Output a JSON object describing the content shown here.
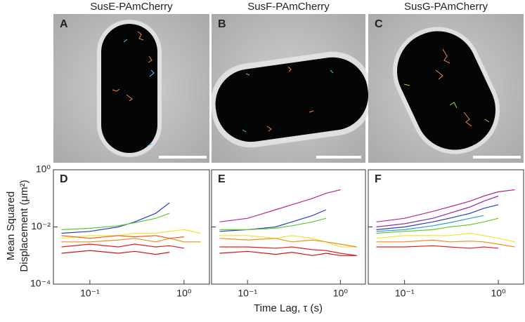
{
  "figure": {
    "ylabel": [
      "Mean Squared",
      "Displacement (μm²)"
    ],
    "xlabel": "Time Lag, τ (s)"
  },
  "images": [
    {
      "title": "SusE-PAmCherry",
      "label": "A"
    },
    {
      "title": "SusF-PAmCherry",
      "label": "B"
    },
    {
      "title": "SusG-PAmCherry",
      "label": "C"
    }
  ],
  "chart_data": [
    {
      "type": "line",
      "label": "D",
      "log_x": true,
      "log_y": true,
      "xlim": [
        0.041,
        1.86
      ],
      "ylim": [
        0.0001,
        1
      ],
      "xticks": [
        {
          "value": 0.1,
          "label": "10⁻¹"
        },
        {
          "value": 1,
          "label": "10⁰"
        }
      ],
      "yticks": [
        {
          "value": 0.0001,
          "label": "10⁻⁴"
        },
        {
          "value": 0.01,
          "label": "10⁻²"
        },
        {
          "value": 1,
          "label": "10⁰"
        }
      ],
      "x": [
        0.05,
        0.1,
        0.2,
        0.3,
        0.5,
        0.7,
        1.0,
        1.5
      ],
      "series": [
        {
          "color": "#2a3cc8",
          "values": [
            0.006,
            0.007,
            0.01,
            0.015,
            0.03,
            0.07,
            null,
            null
          ]
        },
        {
          "color": "#5cc832",
          "values": [
            0.008,
            0.009,
            0.011,
            0.014,
            0.02,
            0.03,
            null,
            null
          ]
        },
        {
          "color": "#f0e628",
          "values": [
            0.004,
            0.005,
            0.005,
            0.006,
            0.006,
            0.007,
            0.008,
            0.006
          ]
        },
        {
          "color": "#f08c1e",
          "values": [
            0.003,
            0.003,
            0.0035,
            0.004,
            0.003,
            0.004,
            0.003,
            0.003
          ]
        },
        {
          "color": "#f05a14",
          "values": [
            0.005,
            0.004,
            0.005,
            0.0045,
            0.005,
            0.004,
            0.0045,
            null
          ]
        },
        {
          "color": "#e61e1e",
          "values": [
            0.002,
            0.0025,
            0.002,
            0.0025,
            0.002,
            0.0022,
            0.0018,
            null
          ]
        },
        {
          "color": "#d21414",
          "values": [
            0.0012,
            0.0015,
            0.0012,
            0.0014,
            0.0011,
            0.0013,
            null,
            null
          ]
        }
      ]
    },
    {
      "type": "line",
      "label": "E",
      "log_x": true,
      "log_y": true,
      "xlim": [
        0.041,
        1.86
      ],
      "ylim": [
        0.0001,
        1
      ],
      "xticks": [
        {
          "value": 0.1,
          "label": "10⁻¹"
        },
        {
          "value": 1,
          "label": "10⁰"
        }
      ],
      "yticks": [
        0.0001,
        0.01,
        1
      ],
      "x": [
        0.05,
        0.1,
        0.2,
        0.3,
        0.5,
        0.7,
        1.0,
        1.5
      ],
      "series": [
        {
          "color": "#b42896",
          "values": [
            0.015,
            0.02,
            0.04,
            0.06,
            0.1,
            0.15,
            0.2,
            null
          ]
        },
        {
          "color": "#2a3cc8",
          "values": [
            0.007,
            0.008,
            0.01,
            0.015,
            0.025,
            0.04,
            null,
            null
          ]
        },
        {
          "color": "#5cc832",
          "values": [
            0.008,
            0.008,
            0.009,
            0.011,
            0.015,
            0.02,
            null,
            null
          ]
        },
        {
          "color": "#f0e628",
          "values": [
            0.005,
            0.005,
            0.004,
            0.005,
            0.004,
            0.003,
            0.002,
            0.002
          ]
        },
        {
          "color": "#f08c1e",
          "values": [
            0.004,
            0.0035,
            0.004,
            0.003,
            0.0035,
            0.003,
            0.0025,
            0.002
          ]
        },
        {
          "color": "#e61e1e",
          "values": [
            0.002,
            0.002,
            0.0018,
            0.002,
            0.0016,
            0.0015,
            0.0012,
            0.001
          ]
        },
        {
          "color": "#d21414",
          "values": [
            0.0012,
            0.0014,
            0.0011,
            0.0013,
            0.001,
            0.0012,
            0.001,
            0.001
          ]
        }
      ]
    },
    {
      "type": "line",
      "label": "F",
      "log_x": true,
      "log_y": true,
      "xlim": [
        0.041,
        1.86
      ],
      "ylim": [
        0.0001,
        1
      ],
      "xticks": [
        {
          "value": 0.1,
          "label": "10⁻¹"
        },
        {
          "value": 1,
          "label": "10⁰"
        }
      ],
      "yticks": [
        0.0001,
        0.01,
        1
      ],
      "x": [
        0.05,
        0.1,
        0.2,
        0.3,
        0.5,
        0.7,
        1.0,
        1.5
      ],
      "series": [
        {
          "color": "#b42896",
          "values": [
            0.015,
            0.02,
            0.035,
            0.05,
            0.08,
            0.12,
            0.17,
            0.2
          ]
        },
        {
          "color": "#9628a0",
          "values": [
            0.01,
            0.013,
            0.02,
            0.03,
            0.05,
            0.08,
            0.12,
            null
          ]
        },
        {
          "color": "#2a3cc8",
          "values": [
            0.008,
            0.01,
            0.015,
            0.02,
            0.03,
            0.045,
            0.06,
            null
          ]
        },
        {
          "color": "#28a0c8",
          "values": [
            0.007,
            0.008,
            0.011,
            0.014,
            0.02,
            0.025,
            null,
            null
          ]
        },
        {
          "color": "#5cc832",
          "values": [
            0.006,
            0.007,
            0.008,
            0.01,
            0.012,
            0.015,
            0.02,
            null
          ]
        },
        {
          "color": "#f0e628",
          "values": [
            0.004,
            0.005,
            0.005,
            0.005,
            0.006,
            0.005,
            0.004,
            0.003
          ]
        },
        {
          "color": "#f08c1e",
          "values": [
            0.003,
            0.003,
            0.0035,
            0.003,
            0.0032,
            0.003,
            0.0025,
            0.002
          ]
        },
        {
          "color": "#e61e1e",
          "values": [
            0.002,
            0.002,
            0.0022,
            0.002,
            0.0018,
            0.002,
            0.0018,
            null
          ]
        }
      ]
    }
  ]
}
